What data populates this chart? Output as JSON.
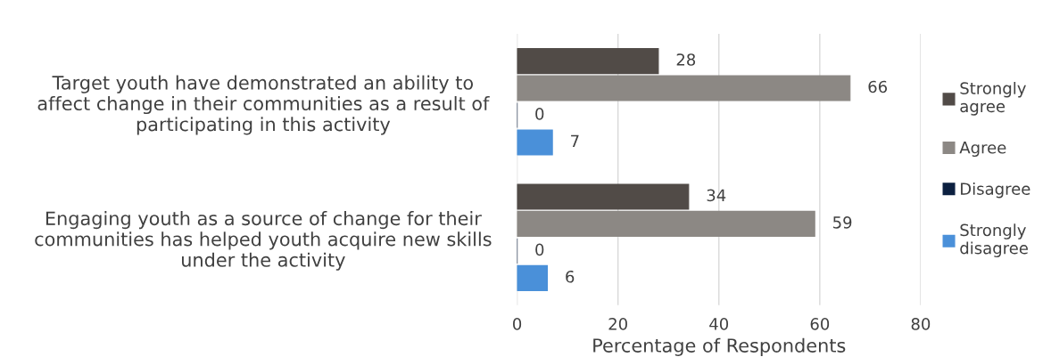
{
  "chart_data": {
    "type": "bar",
    "orientation": "horizontal",
    "categories": [
      "Target youth have demonstrated an ability to\naffect change in their communities as a result of\nparticipating in this activity",
      "Engaging youth as a source of change for their\ncommunities has helped youth acquire new skills\nunder the activity"
    ],
    "series": [
      {
        "name": "Strongly\nagree",
        "color": "#514b47",
        "values": [
          28,
          34
        ]
      },
      {
        "name": "Agree",
        "color": "#8c8884",
        "values": [
          66,
          59
        ]
      },
      {
        "name": "Disagree",
        "color": "#0c2040",
        "values": [
          0,
          0
        ]
      },
      {
        "name": "Strongly\ndisagree",
        "color": "#4a90d9",
        "values": [
          7,
          6
        ]
      }
    ],
    "xlabel": "Percentage of Respondents",
    "xlim": [
      0,
      80
    ],
    "xticks": [
      0,
      20,
      40,
      60,
      80
    ],
    "grid": "x",
    "legend": "right",
    "data_labels": true
  }
}
